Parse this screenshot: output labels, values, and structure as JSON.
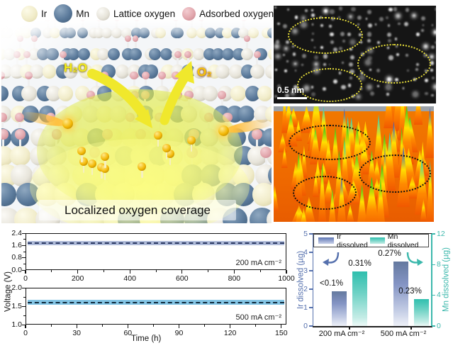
{
  "colors": {
    "ir_sphere": "#f1ecca",
    "mn_sphere": "#5b7a9b",
    "lattice_oxygen_sphere": "#e7e4da",
    "adsorbed_oxygen_sphere": "#e2a7ad",
    "reaction_arrow_yellow": "#f0e82c",
    "stem_ellipse_yellow": "#e8df3a",
    "surface_ellipse_black": "#111111",
    "voltage_band_200": "#aebad8",
    "voltage_dash_200": "#25345f",
    "voltage_band_500": "#85c6e6",
    "voltage_dash_500": "#10293c",
    "ir_axis_blue": "#5570ad",
    "mn_axis_teal": "#3cb8ac"
  },
  "legend": {
    "items": [
      {
        "label": "Ir"
      },
      {
        "label": "Mn"
      },
      {
        "label": "Lattice oxygen"
      },
      {
        "label": "Adsorbed oxygen"
      }
    ]
  },
  "illustration": {
    "h2o_label": "H₂O",
    "o2_label": "O₂",
    "caption": "Localized oxygen coverage"
  },
  "stem": {
    "scale_bar_label": "0.5 nm"
  },
  "chart_data": [
    {
      "id": "stability_200mA",
      "type": "line",
      "xlabel": "",
      "ylabel": "Voltage (V)",
      "xlim": [
        0,
        1000
      ],
      "ylim": [
        0.0,
        2.4
      ],
      "x_ticks": [
        0,
        200,
        400,
        600,
        800,
        1000
      ],
      "y_ticks": [
        "2.4",
        "1.6",
        "0.8",
        "0.0"
      ],
      "annotation": "200 mA cm⁻²",
      "series": [
        {
          "name": "Cell voltage band",
          "style": "thick light-blue band",
          "x": [
            0,
            1000
          ],
          "y": [
            1.78,
            1.78
          ]
        },
        {
          "name": "Mean voltage",
          "style": "dark dashed line",
          "x": [
            0,
            1000
          ],
          "y": [
            1.78,
            1.78
          ]
        }
      ]
    },
    {
      "id": "stability_500mA",
      "type": "line",
      "xlabel": "Time (h)",
      "ylabel": "Voltage (V)",
      "xlim": [
        0,
        153
      ],
      "ylim": [
        1.0,
        2.0
      ],
      "x_ticks": [
        0,
        30,
        60,
        90,
        120,
        150
      ],
      "y_ticks": [
        "2.0",
        "1.5",
        "1.0"
      ],
      "annotation": "500 mA cm⁻²",
      "series": [
        {
          "name": "Cell voltage band",
          "style": "thick light-blue band",
          "x": [
            0,
            153
          ],
          "y": [
            1.63,
            1.63
          ]
        },
        {
          "name": "Mean voltage",
          "style": "dark dashed line",
          "x": [
            0,
            153
          ],
          "y": [
            1.63,
            1.63
          ]
        }
      ]
    },
    {
      "id": "dissolution_bars",
      "type": "bar",
      "categories": [
        "200 mA cm⁻²",
        "500 mA cm⁻²"
      ],
      "series": [
        {
          "name": "Ir dissolved",
          "axis": "left",
          "values": [
            1.9,
            3.5
          ],
          "labels": [
            "<0.1%",
            "0.27%"
          ]
        },
        {
          "name": "Mn dissolved",
          "axis": "right",
          "values": [
            7.1,
            3.5
          ],
          "labels": [
            "0.31%",
            "0.23%"
          ]
        }
      ],
      "left_axis": {
        "label": "Ir dissolved (µg)",
        "ticks": [
          0,
          1,
          2,
          3,
          4,
          5
        ],
        "lim": [
          0,
          5
        ]
      },
      "right_axis": {
        "label": "Mn dissolved (µg)",
        "ticks": [
          0,
          4,
          8,
          12
        ],
        "lim": [
          0,
          12
        ]
      },
      "legend_position": "top"
    }
  ]
}
